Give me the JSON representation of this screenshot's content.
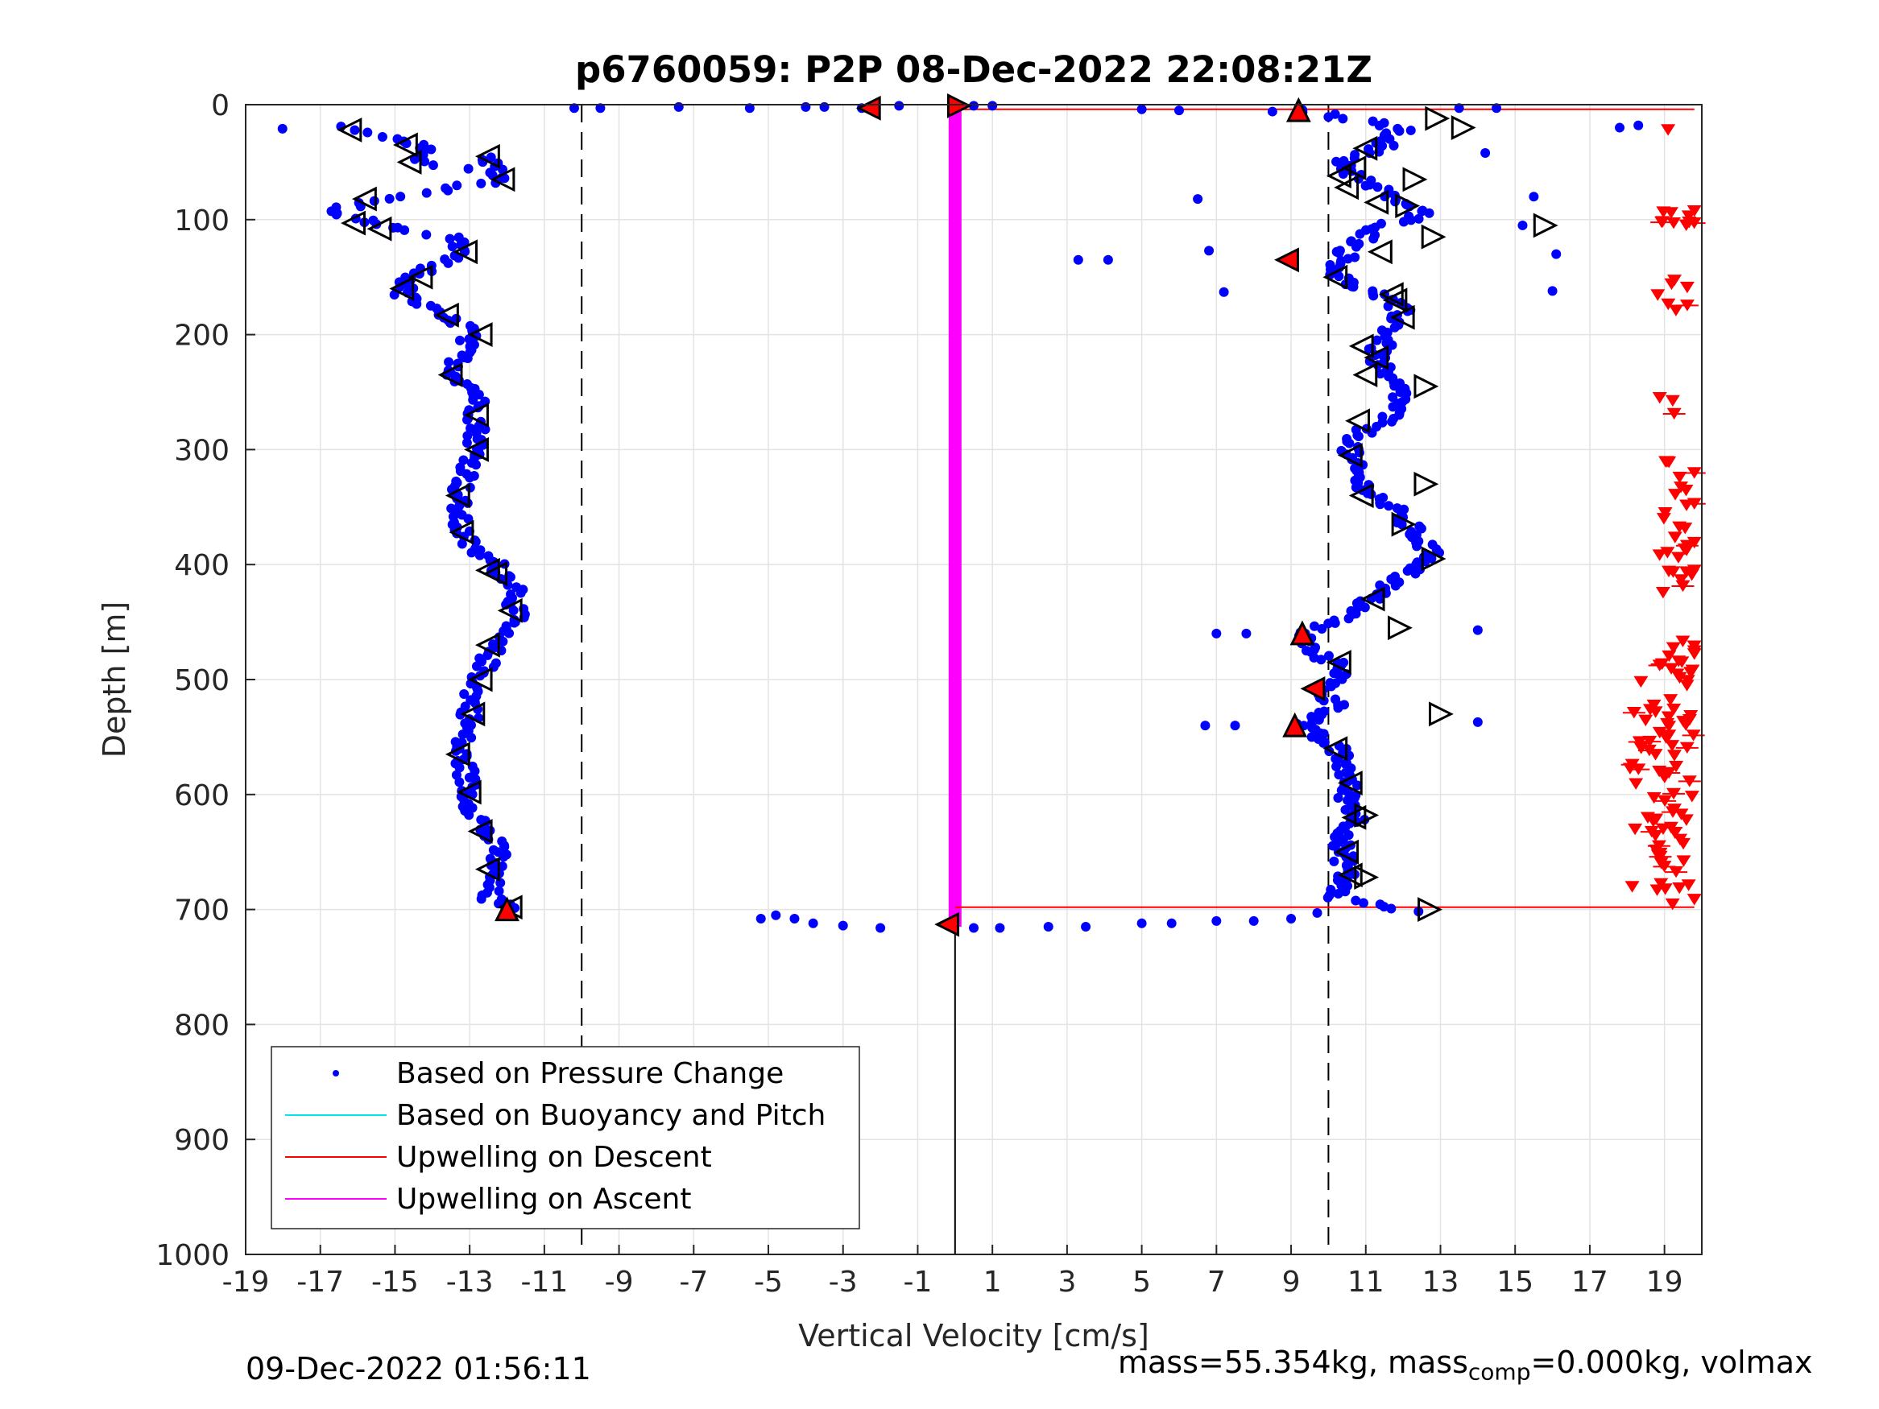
{
  "chart_data": {
    "type": "scatter",
    "title": "p6760059: P2P 08-Dec-2022 22:08:21Z",
    "xlabel": "Vertical Velocity [cm/s]",
    "ylabel": "Depth [m]",
    "xlim": [
      -19,
      20
    ],
    "ylim": [
      0,
      1000
    ],
    "y_reversed": true,
    "grid": true,
    "x_ticks": [
      "-19",
      "-17",
      "-15",
      "-13",
      "-11",
      "-9",
      "-7",
      "-5",
      "-3",
      "-1",
      "1",
      "3",
      "5",
      "7",
      "9",
      "11",
      "13",
      "15",
      "17",
      "19"
    ],
    "y_ticks": [
      "0",
      "100",
      "200",
      "300",
      "400",
      "500",
      "600",
      "700",
      "800",
      "900",
      "1000"
    ],
    "legend": {
      "placement": "bottom-left",
      "entries": [
        {
          "label": "Based on Pressure Change",
          "marker": "dot",
          "color": "#0000ff"
        },
        {
          "label": "Based on Buoyancy and Pitch",
          "marker": "line",
          "color": "#00e5ee"
        },
        {
          "label": "Upwelling on Descent",
          "marker": "line",
          "color": "#ff0000"
        },
        {
          "label": "Upwelling on Ascent",
          "marker": "line",
          "color": "#ff00ff"
        }
      ]
    },
    "reference_lines": {
      "dashed_x": [
        -10,
        10
      ],
      "solid_x_segment": {
        "x": 0,
        "y_from": 700,
        "y_to": 1000
      }
    },
    "series": [
      {
        "name": "Based on Pressure Change",
        "kind": "profile",
        "color": "#0000ff",
        "descent_profile": [
          [
            -18.2,
            22
          ],
          [
            -16.5,
            20
          ],
          [
            -15.5,
            25
          ],
          [
            -14.2,
            35
          ],
          [
            -14.4,
            50
          ],
          [
            -13.2,
            55
          ],
          [
            -12.5,
            45
          ],
          [
            -12.2,
            65
          ],
          [
            -13.8,
            75
          ],
          [
            -15.2,
            82
          ],
          [
            -16.8,
            92
          ],
          [
            -15.8,
            100
          ],
          [
            -15.0,
            110
          ],
          [
            -13.5,
            115
          ],
          [
            -13.2,
            128
          ],
          [
            -14.0,
            140
          ],
          [
            -14.6,
            150
          ],
          [
            -14.8,
            165
          ],
          [
            -14.0,
            180
          ],
          [
            -13.0,
            195
          ],
          [
            -13.2,
            215
          ],
          [
            -13.4,
            235
          ],
          [
            -12.8,
            250
          ],
          [
            -12.8,
            270
          ],
          [
            -12.8,
            290
          ],
          [
            -12.9,
            310
          ],
          [
            -13.3,
            340
          ],
          [
            -13.3,
            365
          ],
          [
            -13.0,
            385
          ],
          [
            -12.3,
            400
          ],
          [
            -11.7,
            420
          ],
          [
            -11.8,
            445
          ],
          [
            -12.3,
            465
          ],
          [
            -12.6,
            490
          ],
          [
            -12.9,
            510
          ],
          [
            -13.0,
            535
          ],
          [
            -13.3,
            560
          ],
          [
            -13.1,
            580
          ],
          [
            -13.0,
            605
          ],
          [
            -12.6,
            630
          ],
          [
            -12.2,
            650
          ],
          [
            -12.4,
            670
          ],
          [
            -12.5,
            690
          ],
          [
            -11.9,
            700
          ]
        ],
        "ascent_profile": [
          [
            9.2,
            5
          ],
          [
            12.0,
            20
          ],
          [
            11.5,
            35
          ],
          [
            10.4,
            50
          ],
          [
            10.8,
            65
          ],
          [
            11.7,
            80
          ],
          [
            12.5,
            95
          ],
          [
            11.2,
            110
          ],
          [
            10.5,
            128
          ],
          [
            10.2,
            150
          ],
          [
            11.3,
            165
          ],
          [
            12.0,
            180
          ],
          [
            11.6,
            200
          ],
          [
            11.3,
            215
          ],
          [
            11.4,
            235
          ],
          [
            12.0,
            250
          ],
          [
            11.7,
            270
          ],
          [
            10.9,
            285
          ],
          [
            10.5,
            305
          ],
          [
            10.9,
            330
          ],
          [
            11.8,
            355
          ],
          [
            12.4,
            375
          ],
          [
            12.8,
            395
          ],
          [
            12.0,
            410
          ],
          [
            11.3,
            425
          ],
          [
            10.8,
            440
          ],
          [
            9.3,
            460
          ],
          [
            9.5,
            475
          ],
          [
            10.5,
            490
          ],
          [
            9.8,
            510
          ],
          [
            10.3,
            525
          ],
          [
            9.2,
            540
          ],
          [
            10.2,
            560
          ],
          [
            10.5,
            580
          ],
          [
            10.5,
            600
          ],
          [
            10.8,
            620
          ],
          [
            10.3,
            645
          ],
          [
            10.5,
            665
          ],
          [
            10.2,
            690
          ],
          [
            12.5,
            703
          ]
        ],
        "surface_points": [
          [
            -10.2,
            3
          ],
          [
            -9.5,
            3
          ],
          [
            -7.4,
            2
          ],
          [
            -5.5,
            3
          ],
          [
            -4.0,
            2
          ],
          [
            -3.5,
            2
          ],
          [
            -2.5,
            3
          ],
          [
            -1.5,
            1
          ],
          [
            0.5,
            1
          ],
          [
            1.0,
            1
          ],
          [
            5.0,
            4
          ],
          [
            6.0,
            5
          ],
          [
            8.5,
            6
          ],
          [
            13.5,
            3
          ],
          [
            14.5,
            3
          ]
        ],
        "bottom_points": [
          [
            -5.2,
            708
          ],
          [
            -4.8,
            705
          ],
          [
            -4.3,
            708
          ],
          [
            -3.8,
            712
          ],
          [
            -3.0,
            714
          ],
          [
            -2.0,
            716
          ],
          [
            0.5,
            716
          ],
          [
            1.2,
            716
          ],
          [
            2.5,
            715
          ],
          [
            3.5,
            715
          ],
          [
            5.0,
            712
          ],
          [
            5.8,
            712
          ],
          [
            7.0,
            710
          ],
          [
            8.0,
            710
          ],
          [
            9.0,
            708
          ],
          [
            9.7,
            703
          ]
        ]
      },
      {
        "name": "Upwelling on Descent",
        "color": "#ff0000",
        "notes": "horizontal lines from 0 to ~19.7 at approx. 4 m and 698 m; scatter of red down-triangles near x≈19 between 20 and 700 m"
      },
      {
        "name": "Upwelling on Ascent",
        "color": "#ff00ff",
        "bar": {
          "x": 0,
          "y_from": 0,
          "y_to": 715
        }
      }
    ]
  },
  "footer": {
    "timestamp": "09-Dec-2022 01:56:11",
    "mass_prefix": "mass=55.354kg, mass",
    "mass_sub": "comp",
    "mass_suffix": "=0.000kg, volmax"
  }
}
